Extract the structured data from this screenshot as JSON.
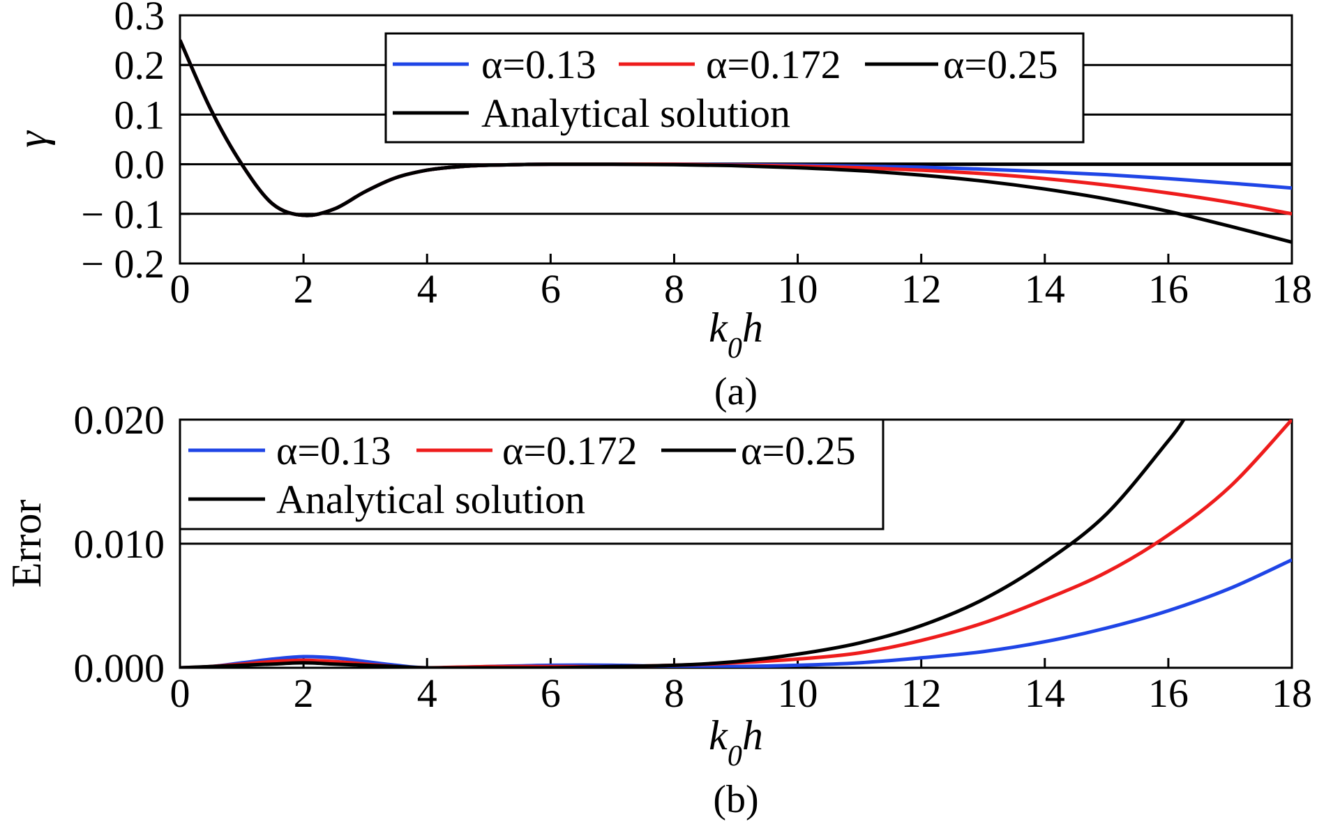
{
  "chart_data": [
    {
      "type": "line",
      "caption": "(a)",
      "xlabel": "k0h",
      "ylabel": "γ",
      "xlim": [
        0,
        18
      ],
      "ylim": [
        -0.2,
        0.3
      ],
      "xticks": [
        0,
        2,
        4,
        6,
        8,
        10,
        12,
        14,
        16,
        18
      ],
      "xtick_labels": [
        "0",
        "2",
        "4",
        "6",
        "8",
        "10",
        "12",
        "14",
        "16",
        "18"
      ],
      "yticks": [
        0.3,
        0.2,
        0.1,
        0.0,
        -0.1,
        -0.2
      ],
      "ytick_labels": [
        "0.3",
        "0.2",
        "0.1",
        "0.0",
        "− 0.1",
        "− 0.2"
      ],
      "hgrid": [
        0.2,
        0.1,
        0.0,
        -0.1
      ],
      "legend": [
        {
          "name": "α=0.13",
          "color": "#1f45e6"
        },
        {
          "name": "α=0.172",
          "color": "#ee1c1c"
        },
        {
          "name": "α=0.25",
          "color": "#000000"
        },
        {
          "name": "Analytical solution",
          "color": "#000000"
        }
      ],
      "legend_position": "top-right",
      "series": [
        {
          "name": "Analytical solution",
          "color": "#000000",
          "x": [
            0,
            0.5,
            1.0,
            1.5,
            2.0,
            2.5,
            3.0,
            3.5,
            4.0,
            4.5,
            5.0,
            6.0,
            7.0,
            8.0,
            9.0,
            10.0,
            11.0,
            12.0,
            13.0,
            14.0,
            15.0,
            16.0,
            17.0,
            18.0
          ],
          "y": [
            0.25,
            0.11,
            0.0,
            -0.08,
            -0.103,
            -0.09,
            -0.055,
            -0.027,
            -0.012,
            -0.005,
            -0.002,
            0.0,
            0.0,
            0.0,
            0.0,
            0.0,
            0.0,
            0.0,
            0.0,
            0.0,
            0.0,
            0.0,
            0.0,
            0.0
          ]
        },
        {
          "name": "α=0.13",
          "color": "#1f45e6",
          "x": [
            0,
            0.5,
            1.0,
            1.5,
            2.0,
            2.5,
            3.0,
            3.5,
            4.0,
            4.5,
            5.0,
            6.0,
            7.0,
            8.0,
            9.0,
            10.0,
            11.0,
            12.0,
            13.0,
            14.0,
            15.0,
            16.0,
            17.0,
            18.0
          ],
          "y": [
            0.25,
            0.11,
            0.0,
            -0.08,
            -0.103,
            -0.09,
            -0.055,
            -0.027,
            -0.012,
            -0.005,
            -0.002,
            0.0,
            0.0,
            0.0,
            -0.001,
            -0.002,
            -0.004,
            -0.006,
            -0.01,
            -0.015,
            -0.021,
            -0.029,
            -0.038,
            -0.048
          ]
        },
        {
          "name": "α=0.172",
          "color": "#ee1c1c",
          "x": [
            0,
            0.5,
            1.0,
            1.5,
            2.0,
            2.5,
            3.0,
            3.5,
            4.0,
            4.5,
            5.0,
            6.0,
            7.0,
            8.0,
            9.0,
            10.0,
            11.0,
            12.0,
            13.0,
            14.0,
            15.0,
            16.0,
            17.0,
            18.0
          ],
          "y": [
            0.25,
            0.11,
            0.0,
            -0.08,
            -0.103,
            -0.09,
            -0.055,
            -0.027,
            -0.012,
            -0.005,
            -0.002,
            0.0,
            0.0,
            0.0,
            -0.002,
            -0.004,
            -0.007,
            -0.012,
            -0.019,
            -0.029,
            -0.042,
            -0.058,
            -0.077,
            -0.1
          ]
        },
        {
          "name": "α=0.25",
          "color": "#000000",
          "x": [
            0,
            0.5,
            1.0,
            1.5,
            2.0,
            2.5,
            3.0,
            3.5,
            4.0,
            4.5,
            5.0,
            6.0,
            7.0,
            8.0,
            9.0,
            10.0,
            11.0,
            12.0,
            13.0,
            14.0,
            15.0,
            16.0,
            17.0,
            18.0
          ],
          "y": [
            0.25,
            0.11,
            0.0,
            -0.08,
            -0.103,
            -0.09,
            -0.055,
            -0.027,
            -0.012,
            -0.005,
            -0.002,
            0.0,
            0.0,
            -0.001,
            -0.003,
            -0.007,
            -0.013,
            -0.022,
            -0.034,
            -0.05,
            -0.07,
            -0.095,
            -0.125,
            -0.157
          ]
        }
      ]
    },
    {
      "type": "line",
      "caption": "(b)",
      "xlabel": "k0h",
      "ylabel": "Error",
      "xlim": [
        0,
        18
      ],
      "ylim": [
        0,
        0.02
      ],
      "xticks": [
        0,
        2,
        4,
        6,
        8,
        10,
        12,
        14,
        16,
        18
      ],
      "xtick_labels": [
        "0",
        "2",
        "4",
        "6",
        "8",
        "10",
        "12",
        "14",
        "16",
        "18"
      ],
      "yticks": [
        0.02,
        0.01,
        0.0
      ],
      "ytick_labels": [
        "0.020",
        "0.010",
        "0.000"
      ],
      "hgrid": [
        0.01
      ],
      "legend": [
        {
          "name": "α=0.13",
          "color": "#1f45e6"
        },
        {
          "name": "α=0.172",
          "color": "#ee1c1c"
        },
        {
          "name": "α=0.25",
          "color": "#000000"
        },
        {
          "name": "Analytical solution",
          "color": "#000000"
        }
      ],
      "legend_position": "top-left",
      "series": [
        {
          "name": "α=0.13",
          "color": "#1f45e6",
          "x": [
            0,
            0.5,
            1.0,
            1.5,
            2.0,
            2.5,
            3.0,
            3.5,
            4.0,
            5.0,
            6.0,
            7.0,
            8.0,
            9.0,
            10.0,
            11.0,
            12.0,
            13.0,
            14.0,
            15.0,
            16.0,
            17.0,
            18.0
          ],
          "y": [
            0.0,
            0.0001,
            0.0004,
            0.0007,
            0.0009,
            0.0008,
            0.0005,
            0.0002,
            0.0,
            0.0001,
            0.0002,
            0.0002,
            0.0001,
            0.0001,
            0.0002,
            0.0004,
            0.0008,
            0.0013,
            0.0021,
            0.0032,
            0.0046,
            0.0064,
            0.0087
          ]
        },
        {
          "name": "α=0.172",
          "color": "#ee1c1c",
          "x": [
            0,
            0.5,
            1.0,
            1.5,
            2.0,
            2.5,
            3.0,
            3.5,
            4.0,
            5.0,
            6.0,
            7.0,
            8.0,
            9.0,
            10.0,
            11.0,
            12.0,
            13.0,
            14.0,
            15.0,
            16.0,
            17.0,
            18.0
          ],
          "y": [
            0.0,
            0.0001,
            0.0003,
            0.0005,
            0.0006,
            0.0005,
            0.0003,
            0.0001,
            0.0,
            0.0001,
            0.0001,
            0.0001,
            0.0002,
            0.0004,
            0.0007,
            0.0012,
            0.0022,
            0.0036,
            0.0055,
            0.0077,
            0.0107,
            0.0146,
            0.02
          ]
        },
        {
          "name": "α=0.25",
          "color": "#000000",
          "x": [
            0,
            0.5,
            1.0,
            1.5,
            2.0,
            2.5,
            3.0,
            3.5,
            4.0,
            5.0,
            6.0,
            7.0,
            8.0,
            9.0,
            10.0,
            11.0,
            12.0,
            13.0,
            14.0,
            15.0,
            16.0,
            16.25
          ],
          "y": [
            0.0,
            0.0001,
            0.0002,
            0.0003,
            0.0004,
            0.0003,
            0.0002,
            0.0001,
            0.0,
            0.0,
            0.0,
            0.0001,
            0.0002,
            0.0005,
            0.0011,
            0.002,
            0.0034,
            0.0055,
            0.0085,
            0.0124,
            0.0183,
            0.02
          ]
        }
      ]
    }
  ]
}
